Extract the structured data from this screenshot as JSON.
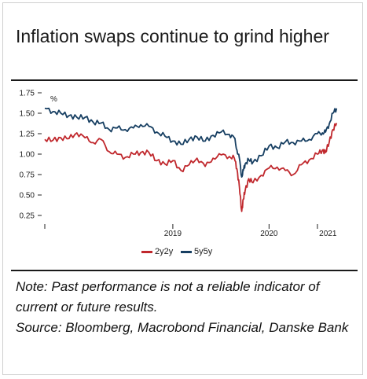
{
  "title": "Inflation swaps continue to grind higher",
  "note_lines": [
    "Note: Past performance is not a reliable indicator of current or future results.",
    "Source: Bloomberg, Macrobond Financial, Danske Bank"
  ],
  "chart_data": {
    "type": "line",
    "title": "Inflation swaps continue to grind higher",
    "ylabel": "%",
    "ylim": [
      0.25,
      1.75
    ],
    "yticks": [
      "1.75",
      "1.50",
      "1.25",
      "1.00",
      "0.75",
      "0.50",
      "0.25"
    ],
    "xlim": [
      "2018-03-01",
      "2021-03-20"
    ],
    "xticks": [
      "2019",
      "2020",
      "2021"
    ],
    "legend_position": "bottom-right",
    "series": [
      {
        "name": "2y2y",
        "color": "#c0282d",
        "x": [
          "2018-03-01",
          "2018-04-01",
          "2018-05-01",
          "2018-06-01",
          "2018-07-01",
          "2018-08-01",
          "2018-09-01",
          "2018-10-01",
          "2018-11-01",
          "2018-12-01",
          "2019-01-01",
          "2019-02-01",
          "2019-03-01",
          "2019-04-01",
          "2019-05-01",
          "2019-06-01",
          "2019-07-01",
          "2019-08-01",
          "2019-09-01",
          "2019-10-01",
          "2019-11-01",
          "2019-12-01",
          "2020-01-01",
          "2020-02-01",
          "2020-02-20",
          "2020-03-01",
          "2020-03-10",
          "2020-03-19",
          "2020-03-25",
          "2020-04-01",
          "2020-04-15",
          "2020-05-01",
          "2020-06-01",
          "2020-07-01",
          "2020-08-01",
          "2020-09-01",
          "2020-10-01",
          "2020-11-01",
          "2020-12-01",
          "2021-01-01",
          "2021-01-20",
          "2021-02-01",
          "2021-02-15",
          "2021-03-01",
          "2021-03-15"
        ],
        "y": [
          1.18,
          1.17,
          1.2,
          1.19,
          1.26,
          1.2,
          1.14,
          1.18,
          1.03,
          1.0,
          0.96,
          1.0,
          1.02,
          1.02,
          0.92,
          0.88,
          0.92,
          0.8,
          0.87,
          0.95,
          0.85,
          0.95,
          0.99,
          0.97,
          0.95,
          0.82,
          0.6,
          0.3,
          0.45,
          0.55,
          0.7,
          0.65,
          0.74,
          0.83,
          0.84,
          0.8,
          0.75,
          0.87,
          0.93,
          1.0,
          1.05,
          1.02,
          1.15,
          1.3,
          1.38
        ]
      },
      {
        "name": "5y5y",
        "color": "#173f62",
        "x": [
          "2018-03-01",
          "2018-04-01",
          "2018-05-01",
          "2018-06-01",
          "2018-07-01",
          "2018-08-01",
          "2018-09-01",
          "2018-10-01",
          "2018-11-01",
          "2018-12-01",
          "2019-01-01",
          "2019-02-01",
          "2019-03-01",
          "2019-04-01",
          "2019-05-01",
          "2019-06-01",
          "2019-07-01",
          "2019-08-01",
          "2019-09-01",
          "2019-10-01",
          "2019-11-01",
          "2019-12-01",
          "2020-01-01",
          "2020-02-01",
          "2020-02-20",
          "2020-03-01",
          "2020-03-10",
          "2020-03-19",
          "2020-03-25",
          "2020-04-01",
          "2020-04-15",
          "2020-05-01",
          "2020-06-01",
          "2020-07-01",
          "2020-08-01",
          "2020-09-01",
          "2020-10-01",
          "2020-11-01",
          "2020-12-01",
          "2021-01-01",
          "2021-01-20",
          "2021-02-01",
          "2021-02-15",
          "2021-03-01",
          "2021-03-15"
        ],
        "y": [
          1.56,
          1.52,
          1.5,
          1.47,
          1.45,
          1.45,
          1.39,
          1.38,
          1.3,
          1.32,
          1.3,
          1.32,
          1.36,
          1.34,
          1.27,
          1.22,
          1.16,
          1.12,
          1.18,
          1.21,
          1.16,
          1.23,
          1.27,
          1.24,
          1.2,
          1.05,
          0.95,
          0.72,
          0.8,
          0.88,
          0.93,
          0.9,
          0.98,
          1.1,
          1.08,
          1.15,
          1.14,
          1.16,
          1.18,
          1.25,
          1.26,
          1.27,
          1.37,
          1.5,
          1.56
        ]
      }
    ]
  }
}
